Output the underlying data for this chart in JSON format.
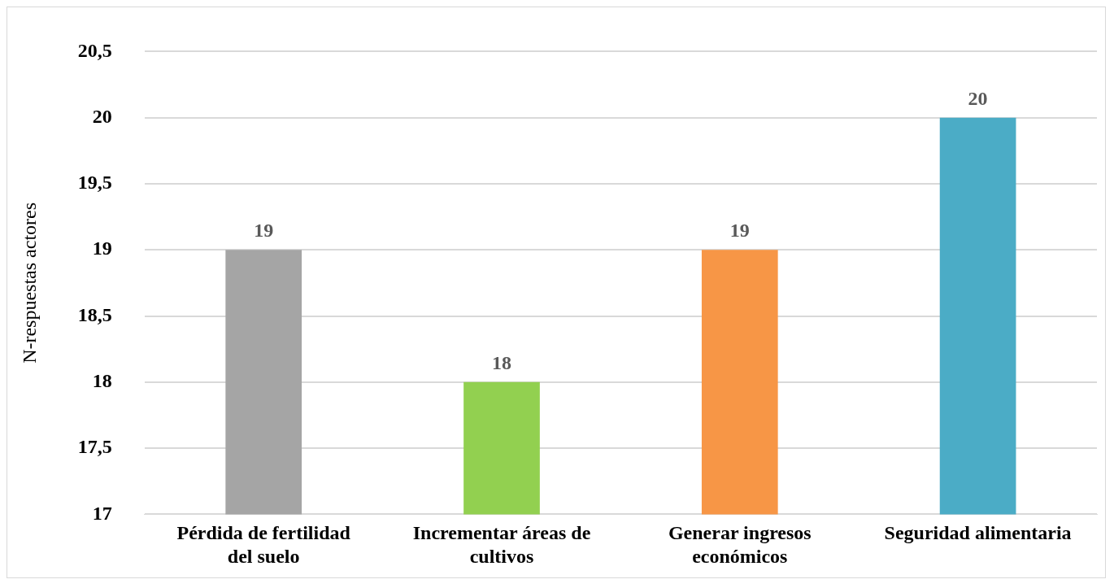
{
  "chart_data": {
    "type": "bar",
    "ylabel": "N-respuestas actores",
    "categories": [
      "Pérdida de fertilidad del suelo",
      "Incrementar áreas de cultivos",
      "Generar ingresos económicos",
      "Seguridad alimentaria"
    ],
    "values": [
      19,
      18,
      19,
      20
    ],
    "colors": [
      "#a5a5a5",
      "#92d050",
      "#f79646",
      "#4bacc6"
    ],
    "ylim": [
      17,
      20.5
    ],
    "yticks": [
      17,
      {
        "value": 17.5,
        "label": "17,5"
      },
      18,
      {
        "value": 18.5,
        "label": "18,5"
      },
      19,
      {
        "value": 19.5,
        "label": "19,5"
      },
      20,
      {
        "value": 20.5,
        "label": "20,5"
      }
    ],
    "grid": "y",
    "legend": false,
    "data_labels": true
  }
}
